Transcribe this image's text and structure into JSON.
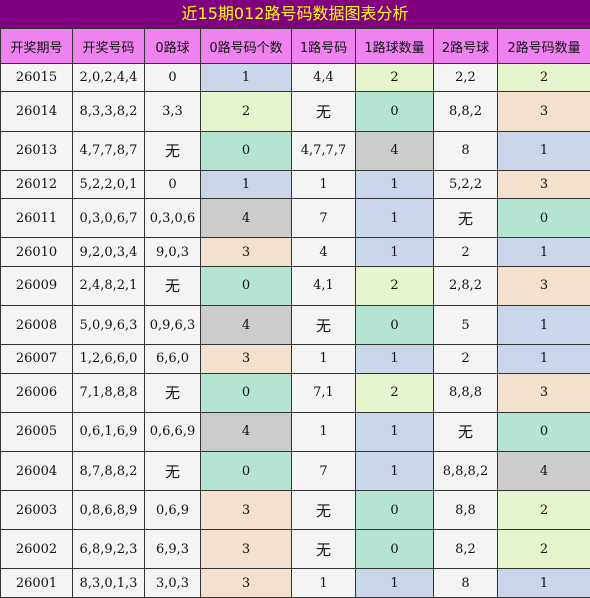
{
  "title": "近15期012路号码数据图表分析",
  "headers": [
    "开奖期号",
    "开奖号码",
    "0路球",
    "0路号码个数",
    "1路号码",
    "1路球数量",
    "2路号球",
    "2路号码数量"
  ],
  "rows": [
    {
      "period": "26015",
      "numbers": "2,0,2,4,4",
      "r0": "0",
      "r0_count": "1",
      "r1": "4,4",
      "r1_count": "2",
      "r2": "2,2",
      "r2_count": "2",
      "c0": "c-blue",
      "c1": "c-green",
      "c2": "c-green"
    },
    {
      "period": "26014",
      "numbers": "8,3,3,8,2",
      "r0": "3,3",
      "r0_count": "2",
      "r1": "无",
      "r1_count": "0",
      "r2": "8,8,2",
      "r2_count": "3",
      "c0": "c-green",
      "c1": "c-teal",
      "c2": "c-tan"
    },
    {
      "period": "26013",
      "numbers": "4,7,7,8,7",
      "r0": "无",
      "r0_count": "0",
      "r1": "4,7,7,7",
      "r1_count": "4",
      "r2": "8",
      "r2_count": "1",
      "c0": "c-teal",
      "c1": "c-gray",
      "c2": "c-blue"
    },
    {
      "period": "26012",
      "numbers": "5,2,2,0,1",
      "r0": "0",
      "r0_count": "1",
      "r1": "1",
      "r1_count": "1",
      "r2": "5,2,2",
      "r2_count": "3",
      "c0": "c-blue",
      "c1": "c-blue",
      "c2": "c-tan"
    },
    {
      "period": "26011",
      "numbers": "0,3,0,6,7",
      "r0": "0,3,0,6",
      "r0_count": "4",
      "r1": "7",
      "r1_count": "1",
      "r2": "无",
      "r2_count": "0",
      "c0": "c-gray",
      "c1": "c-blue",
      "c2": "c-teal"
    },
    {
      "period": "26010",
      "numbers": "9,2,0,3,4",
      "r0": "9,0,3",
      "r0_count": "3",
      "r1": "4",
      "r1_count": "1",
      "r2": "2",
      "r2_count": "1",
      "c0": "c-tan",
      "c1": "c-blue",
      "c2": "c-blue"
    },
    {
      "period": "26009",
      "numbers": "2,4,8,2,1",
      "r0": "无",
      "r0_count": "0",
      "r1": "4,1",
      "r1_count": "2",
      "r2": "2,8,2",
      "r2_count": "3",
      "c0": "c-teal",
      "c1": "c-green",
      "c2": "c-tan"
    },
    {
      "period": "26008",
      "numbers": "5,0,9,6,3",
      "r0": "0,9,6,3",
      "r0_count": "4",
      "r1": "无",
      "r1_count": "0",
      "r2": "5",
      "r2_count": "1",
      "c0": "c-gray",
      "c1": "c-teal",
      "c2": "c-blue"
    },
    {
      "period": "26007",
      "numbers": "1,2,6,6,0",
      "r0": "6,6,0",
      "r0_count": "3",
      "r1": "1",
      "r1_count": "1",
      "r2": "2",
      "r2_count": "1",
      "c0": "c-tan",
      "c1": "c-blue",
      "c2": "c-blue"
    },
    {
      "period": "26006",
      "numbers": "7,1,8,8,8",
      "r0": "无",
      "r0_count": "0",
      "r1": "7,1",
      "r1_count": "2",
      "r2": "8,8,8",
      "r2_count": "3",
      "c0": "c-teal",
      "c1": "c-green",
      "c2": "c-tan"
    },
    {
      "period": "26005",
      "numbers": "0,6,1,6,9",
      "r0": "0,6,6,9",
      "r0_count": "4",
      "r1": "1",
      "r1_count": "1",
      "r2": "无",
      "r2_count": "0",
      "c0": "c-gray",
      "c1": "c-blue",
      "c2": "c-teal"
    },
    {
      "period": "26004",
      "numbers": "8,7,8,8,2",
      "r0": "无",
      "r0_count": "0",
      "r1": "7",
      "r1_count": "1",
      "r2": "8,8,8,2",
      "r2_count": "4",
      "c0": "c-teal",
      "c1": "c-blue",
      "c2": "c-gray"
    },
    {
      "period": "26003",
      "numbers": "0,8,6,8,9",
      "r0": "0,6,9",
      "r0_count": "3",
      "r1": "无",
      "r1_count": "0",
      "r2": "8,8",
      "r2_count": "2",
      "c0": "c-tan",
      "c1": "c-teal",
      "c2": "c-green"
    },
    {
      "period": "26002",
      "numbers": "6,8,9,2,3",
      "r0": "6,9,3",
      "r0_count": "3",
      "r1": "无",
      "r1_count": "0",
      "r2": "8,2",
      "r2_count": "2",
      "c0": "c-tan",
      "c1": "c-teal",
      "c2": "c-green"
    },
    {
      "period": "26001",
      "numbers": "8,3,0,1,3",
      "r0": "3,0,3",
      "r0_count": "3",
      "r1": "1",
      "r1_count": "1",
      "r2": "8",
      "r2_count": "1",
      "c0": "c-tan",
      "c1": "c-blue",
      "c2": "c-blue"
    }
  ],
  "colors": {
    "header_bg": "#ee82ee",
    "title_bg": "#800080",
    "title_text": "#ffff00"
  }
}
